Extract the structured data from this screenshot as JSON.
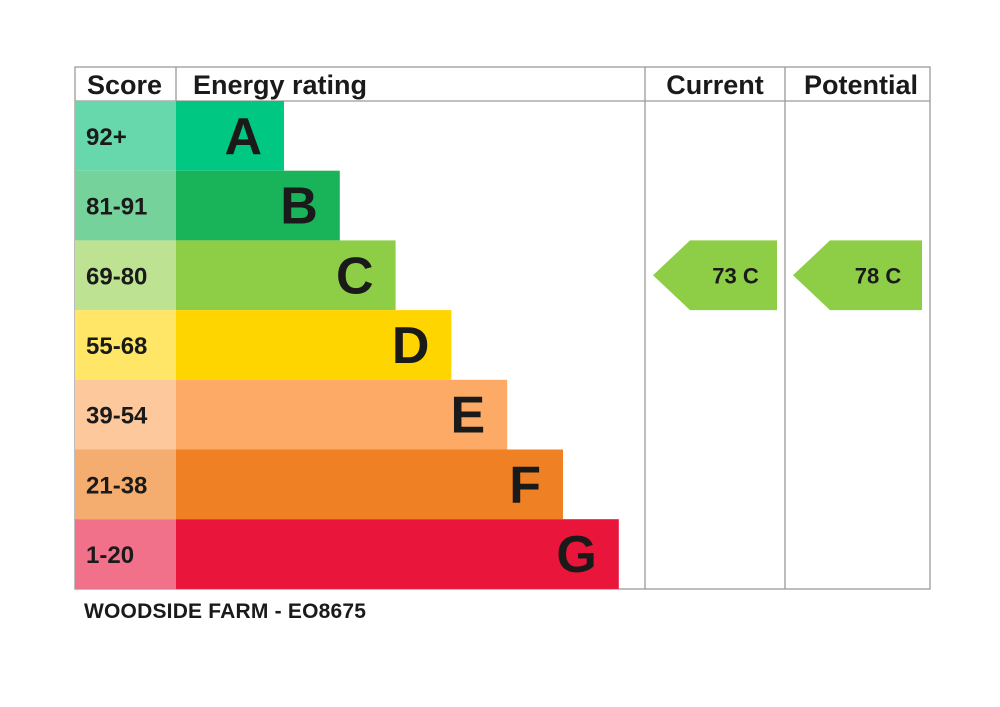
{
  "headers": {
    "score": "Score",
    "rating": "Energy rating",
    "current": "Current",
    "potential": "Potential"
  },
  "caption": "WOODSIDE FARM - EO8675",
  "chart_data": {
    "type": "bar",
    "title": "",
    "categories": [
      "A",
      "B",
      "C",
      "D",
      "E",
      "F",
      "G"
    ],
    "bands": [
      {
        "letter": "A",
        "range": "92+",
        "color": "#00c781",
        "score_color": "#66d8ab"
      },
      {
        "letter": "B",
        "range": "81-91",
        "color": "#19b459",
        "score_color": "#75d29a"
      },
      {
        "letter": "C",
        "range": "69-80",
        "color": "#8dce46",
        "score_color": "#bce292"
      },
      {
        "letter": "D",
        "range": "55-68",
        "color": "#ffd500",
        "score_color": "#ffe666"
      },
      {
        "letter": "E",
        "range": "39-54",
        "color": "#fcaa65",
        "score_color": "#fdc99c"
      },
      {
        "letter": "F",
        "range": "21-38",
        "color": "#ef8023",
        "score_color": "#f4ac6f"
      },
      {
        "letter": "G",
        "range": "1-20",
        "color": "#e9153b",
        "score_color": "#f07189"
      }
    ],
    "current": {
      "score": 73,
      "band": "C",
      "label": "73  C",
      "color": "#8dce46"
    },
    "potential": {
      "score": 78,
      "band": "C",
      "label": "78  C",
      "color": "#8dce46"
    }
  }
}
